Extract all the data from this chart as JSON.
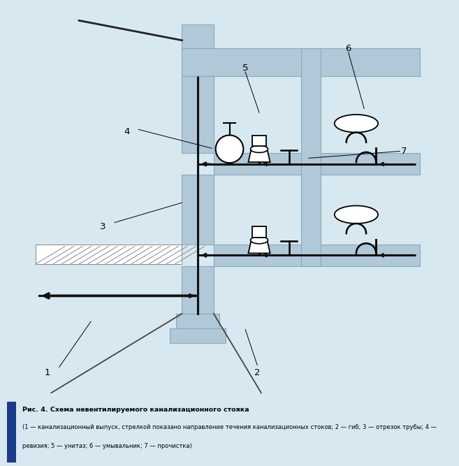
{
  "bg_color": "#d8e8f0",
  "diagram_bg": "#ffffff",
  "struct_fill": "#b0c8d8",
  "struct_edge": "#8aaabb",
  "pipe_color": "#111111",
  "pipe_lw": 2.2,
  "caption_bold": "Рис. 4. Схема невентилируемого канализационного стояка",
  "caption_normal": " (1 — канализационный выпуск, стрелкой показано направление течения канализационных стоков; 2 — гиб; 3 — отрезок трубы; 4 — ревизия; 5 — унитаз; 6 — умывальник; 7 — прочистка)"
}
